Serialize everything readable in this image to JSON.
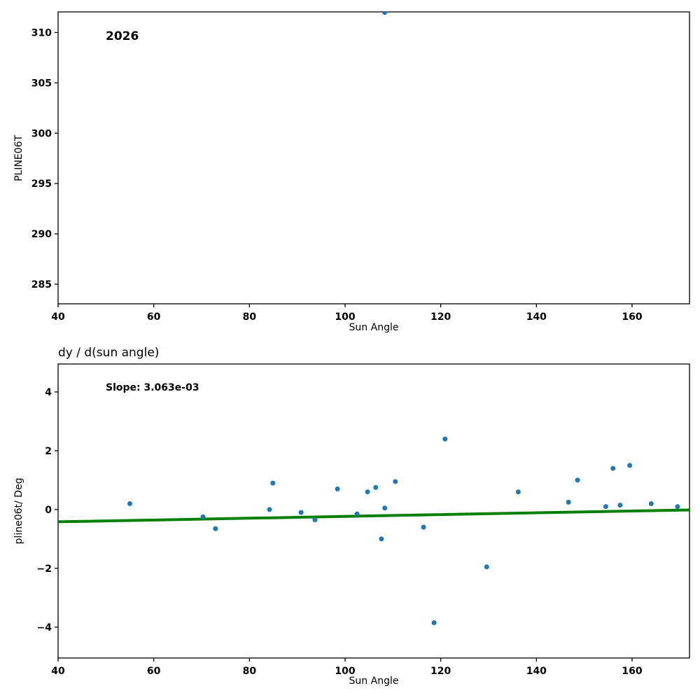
{
  "chart_data": [
    {
      "id": "top",
      "type": "scatter",
      "title": "",
      "annotation": "2026",
      "xlabel": "Sun Angle",
      "ylabel": "PLINE06T",
      "xlim": [
        40,
        172
      ],
      "ylim": [
        283.05,
        312.05
      ],
      "xticks": [
        40,
        60,
        80,
        100,
        120,
        140,
        160
      ],
      "xtick_labels": [
        "40",
        "60",
        "80",
        "100",
        "120",
        "140",
        "160"
      ],
      "yticks": [
        285,
        290,
        295,
        300,
        305,
        310
      ],
      "ytick_labels": [
        "285",
        "290",
        "295",
        "300",
        "305",
        "310"
      ],
      "grid": false,
      "point_color": "#1f77b4",
      "points": [
        [
          108.3,
          312.0
        ]
      ]
    },
    {
      "id": "bottom",
      "type": "scatter",
      "title": "dy / d(sun angle)",
      "annotation": "Slope: 3.063e-03",
      "xlabel": "Sun Angle",
      "ylabel": "pline06t/ Deg",
      "xlim": [
        40,
        172
      ],
      "ylim": [
        -5.05,
        4.95
      ],
      "xticks": [
        40,
        60,
        80,
        100,
        120,
        140,
        160
      ],
      "xtick_labels": [
        "40",
        "60",
        "80",
        "100",
        "120",
        "140",
        "160"
      ],
      "yticks": [
        -4,
        -2,
        0,
        2,
        4
      ],
      "ytick_labels": [
        "−4",
        "−2",
        "0",
        "2",
        "4"
      ],
      "grid": false,
      "point_color": "#1f77b4",
      "points": [
        [
          55.0,
          0.2
        ],
        [
          70.3,
          -0.25
        ],
        [
          72.9,
          -0.65
        ],
        [
          84.2,
          0.0
        ],
        [
          84.9,
          0.9
        ],
        [
          90.8,
          -0.1
        ],
        [
          93.7,
          -0.35
        ],
        [
          98.4,
          0.7
        ],
        [
          102.5,
          -0.15
        ],
        [
          104.7,
          0.6
        ],
        [
          106.4,
          0.75
        ],
        [
          107.6,
          -1.0
        ],
        [
          108.3,
          0.05
        ],
        [
          110.5,
          0.95
        ],
        [
          116.4,
          -0.6
        ],
        [
          118.6,
          -3.85
        ],
        [
          120.9,
          2.4
        ],
        [
          129.6,
          -1.95
        ],
        [
          136.2,
          0.6
        ],
        [
          146.7,
          0.25
        ],
        [
          148.6,
          1.0
        ],
        [
          154.5,
          0.1
        ],
        [
          156.0,
          1.4
        ],
        [
          157.5,
          0.15
        ],
        [
          159.5,
          1.5
        ],
        [
          164.0,
          0.2
        ],
        [
          169.5,
          0.1
        ]
      ],
      "trend": {
        "slope": 0.003063,
        "intercept": -0.54,
        "color": "#008000",
        "label": "Slope: 3.063e-03"
      }
    }
  ]
}
